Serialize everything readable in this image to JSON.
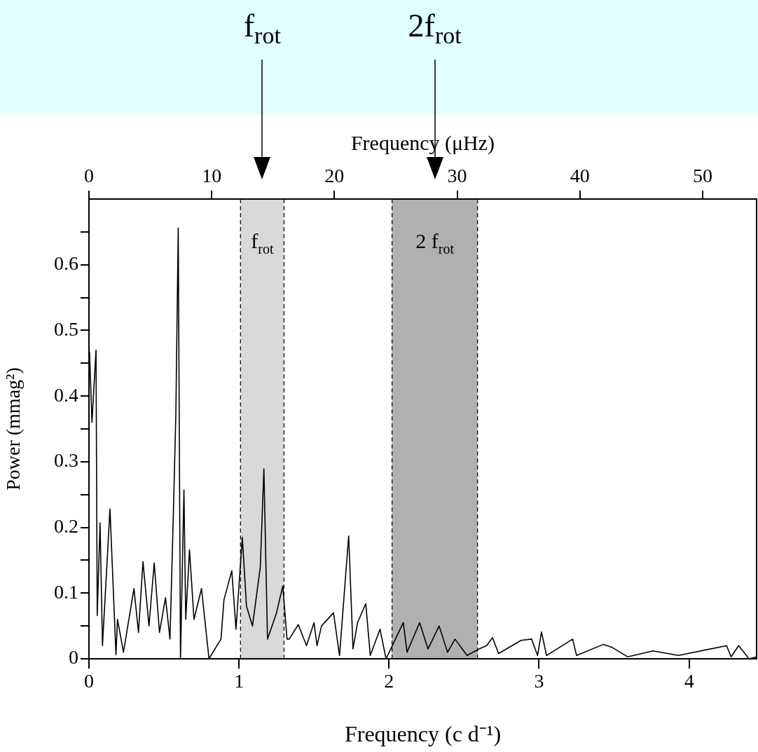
{
  "chart_data": {
    "type": "line",
    "xlabel": "Frequency (c d⁻¹)",
    "x2label": "Frequency (μHz)",
    "ylabel": "Power (mmag²)",
    "x": [
      0.004,
      0.02,
      0.047,
      0.055,
      0.074,
      0.09,
      0.14,
      0.18,
      0.19,
      0.23,
      0.3,
      0.33,
      0.36,
      0.4,
      0.435,
      0.47,
      0.51,
      0.54,
      0.563,
      0.579,
      0.595,
      0.61,
      0.633,
      0.645,
      0.67,
      0.7,
      0.75,
      0.8,
      0.88,
      0.9,
      0.952,
      0.98,
      1.022,
      1.05,
      1.09,
      1.142,
      1.166,
      1.19,
      1.25,
      1.292,
      1.32,
      1.335,
      1.395,
      1.45,
      1.5,
      1.52,
      1.55,
      1.63,
      1.67,
      1.731,
      1.76,
      1.79,
      1.845,
      1.875,
      1.94,
      1.98,
      2.095,
      2.12,
      2.204,
      2.26,
      2.334,
      2.39,
      2.44,
      2.52,
      2.6,
      2.65,
      2.69,
      2.73,
      2.88,
      2.95,
      2.99,
      3.016,
      3.05,
      3.224,
      3.25,
      3.43,
      3.49,
      3.59,
      3.76,
      3.93,
      4.25,
      4.28,
      4.33,
      4.4,
      4.45
    ],
    "series": [
      {
        "color": "#000000",
        "values": [
          0.467,
          0.36,
          0.47,
          0.066,
          0.207,
          0.02,
          0.228,
          0.006,
          0.06,
          0.01,
          0.107,
          0.04,
          0.148,
          0.05,
          0.146,
          0.04,
          0.093,
          0.03,
          0.225,
          0.371,
          0.656,
          0.0,
          0.257,
          0.06,
          0.166,
          0.06,
          0.107,
          0.0,
          0.03,
          0.09,
          0.134,
          0.045,
          0.185,
          0.08,
          0.05,
          0.14,
          0.289,
          0.03,
          0.07,
          0.111,
          0.03,
          0.03,
          0.052,
          0.02,
          0.055,
          0.02,
          0.05,
          0.07,
          0.005,
          0.187,
          0.015,
          0.055,
          0.084,
          0.005,
          0.045,
          0.0,
          0.055,
          0.01,
          0.055,
          0.015,
          0.05,
          0.01,
          0.03,
          0.005,
          0.015,
          0.02,
          0.032,
          0.008,
          0.028,
          0.03,
          0.005,
          0.041,
          0.005,
          0.03,
          0.005,
          0.022,
          0.017,
          0.003,
          0.012,
          0.005,
          0.02,
          0.003,
          0.02,
          0.0,
          0.003
        ]
      }
    ],
    "xlim": [
      0,
      4.45
    ],
    "xticks": [
      0,
      1,
      2,
      3,
      4
    ],
    "x2lim": [
      0,
      54.4
    ],
    "x2ticks": [
      0,
      10,
      20,
      30,
      40,
      50
    ],
    "ylim": [
      0,
      0.7
    ],
    "yticks": [
      0,
      {
        "value": 0.05,
        "label": null
      },
      0.1,
      {
        "value": 0.15,
        "label": null
      },
      0.2,
      {
        "value": 0.25,
        "label": null
      },
      0.3,
      {
        "value": 0.35,
        "label": null
      },
      0.4,
      {
        "value": 0.45,
        "label": null
      },
      0.5,
      {
        "value": 0.55,
        "label": null
      },
      0.6,
      {
        "value": 0.65,
        "label": null
      }
    ],
    "bands": [
      {
        "axis": "x",
        "from": 1.01,
        "to": 1.3,
        "label": "f$_{rot}$",
        "color": "#d9d9d9"
      },
      {
        "axis": "x",
        "from": 2.02,
        "to": 2.59,
        "label": "2 f$_{rot}$",
        "color": "#b0b0b0"
      }
    ],
    "annotations": [
      "f$_{rot}$",
      "2f$_{rot}$"
    ],
    "marker": "none",
    "line_style": "solid"
  }
}
